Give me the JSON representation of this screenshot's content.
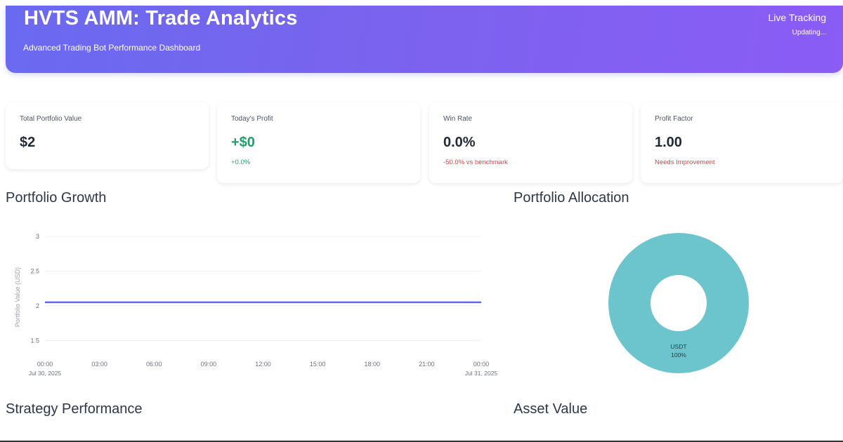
{
  "header": {
    "title": "HVTS AMM: Trade Analytics",
    "subtitle": "Advanced Trading Bot Performance Dashboard",
    "live_label": "Live Tracking",
    "live_status": "Updating..."
  },
  "metrics": [
    {
      "label": "Total Portfolio Value",
      "value": "$2",
      "note": ""
    },
    {
      "label": "Today's Profit",
      "value": "+$0",
      "note": "+0.0%"
    },
    {
      "label": "Win Rate",
      "value": "0.0%",
      "note": "-50.0% vs benchmark"
    },
    {
      "label": "Profit Factor",
      "value": "1.00",
      "note": "Needs Improvement"
    }
  ],
  "sections": {
    "portfolio_growth": "Portfolio Growth",
    "portfolio_allocation": "Portfolio Allocation",
    "strategy_performance": "Strategy Performance",
    "asset_value": "Asset Value"
  },
  "colors": {
    "header_gradient_start": "#6a6af0",
    "header_gradient_end": "#8b5cf6",
    "positive": "#22a06b",
    "negative": "#e53e3e",
    "line": "#6366f1",
    "donut": "#6cc5cc"
  },
  "chart_data": [
    {
      "type": "line",
      "ylabel": "Portfolio Value (USD)",
      "ylim": [
        1.25,
        3
      ],
      "yticks": [
        3,
        2.5,
        2,
        1.5
      ],
      "xticks": [
        "00:00",
        "03:00",
        "06:00",
        "09:00",
        "12:00",
        "15:00",
        "18:00",
        "21:00",
        "00:00"
      ],
      "xtick_dates": [
        "Jul 30, 2025",
        "",
        "",
        "",
        "",
        "",
        "",
        "",
        "Jul 31, 2025"
      ],
      "grid": true,
      "series": [
        {
          "x": [
            "00:00",
            "00:00"
          ],
          "values": [
            2.05,
            2.05
          ]
        }
      ]
    },
    {
      "type": "pie",
      "hole": true,
      "categories": [
        "USDT"
      ],
      "values": [
        100
      ],
      "labels": [
        "USDT",
        "100%"
      ]
    }
  ]
}
